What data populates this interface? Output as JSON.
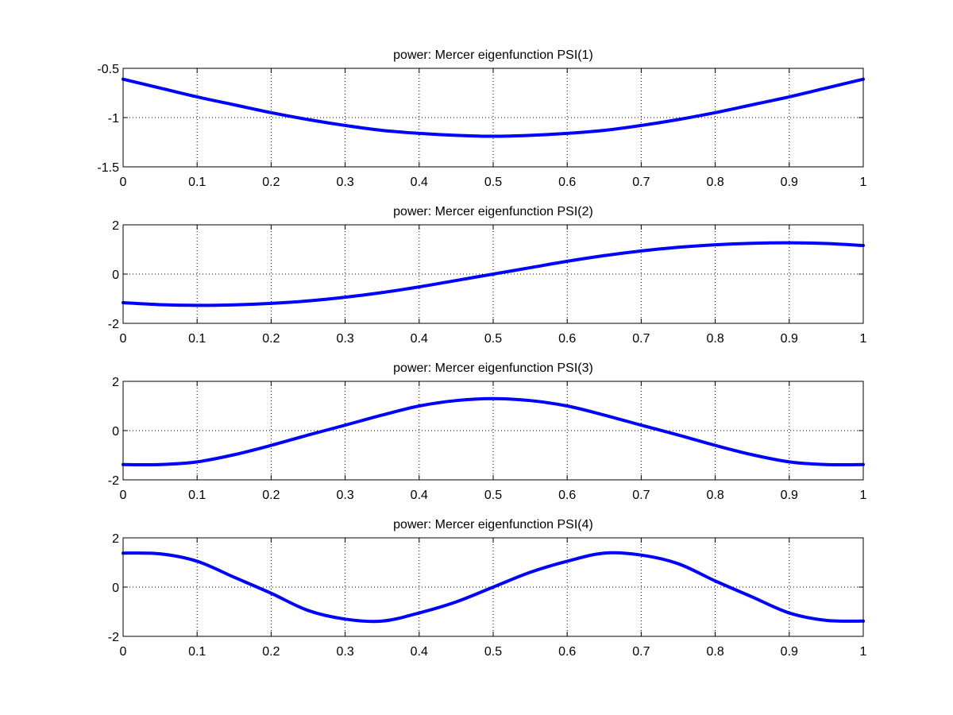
{
  "figure": {
    "background": "#ffffff",
    "line_color": "#0000ff",
    "axis_color": "#000000",
    "grid_color": "#000000",
    "grid": true
  },
  "chart_data": [
    {
      "type": "line",
      "title": "power: Mercer eigenfunction PSI(1)",
      "xlabel": "",
      "ylabel": "",
      "xlim": [
        0,
        1
      ],
      "ylim": [
        -1.5,
        -0.5
      ],
      "xticks": [
        "0",
        "0.1",
        "0.2",
        "0.3",
        "0.4",
        "0.5",
        "0.6",
        "0.7",
        "0.8",
        "0.9",
        "1"
      ],
      "yticks": [
        {
          "value": -0.5,
          "label": "-0.5"
        },
        {
          "value": -1,
          "label": "-1"
        },
        {
          "value": -1.5,
          "label": "-1.5"
        }
      ],
      "series": [
        {
          "color": "#0000ff",
          "x": [
            0,
            0.05,
            0.1,
            0.15,
            0.2,
            0.25,
            0.3,
            0.35,
            0.4,
            0.45,
            0.5,
            0.55,
            0.6,
            0.65,
            0.7,
            0.75,
            0.8,
            0.85,
            0.9,
            0.95,
            1
          ],
          "y": [
            -0.61,
            -0.7,
            -0.79,
            -0.87,
            -0.95,
            -1.02,
            -1.08,
            -1.13,
            -1.16,
            -1.18,
            -1.19,
            -1.18,
            -1.16,
            -1.13,
            -1.08,
            -1.02,
            -0.95,
            -0.87,
            -0.79,
            -0.7,
            -0.61
          ]
        }
      ]
    },
    {
      "type": "line",
      "title": "power: Mercer eigenfunction PSI(2)",
      "xlabel": "",
      "ylabel": "",
      "xlim": [
        0,
        1
      ],
      "ylim": [
        -2,
        2
      ],
      "xticks": [
        "0",
        "0.1",
        "0.2",
        "0.3",
        "0.4",
        "0.5",
        "0.6",
        "0.7",
        "0.8",
        "0.9",
        "1"
      ],
      "yticks": [
        {
          "value": 2,
          "label": "2"
        },
        {
          "value": 0,
          "label": "0"
        },
        {
          "value": -2,
          "label": "-2"
        }
      ],
      "series": [
        {
          "color": "#0000ff",
          "x": [
            0,
            0.05,
            0.1,
            0.15,
            0.2,
            0.25,
            0.3,
            0.35,
            0.4,
            0.45,
            0.5,
            0.55,
            0.6,
            0.65,
            0.7,
            0.75,
            0.8,
            0.85,
            0.9,
            0.95,
            1
          ],
          "y": [
            -1.16,
            -1.24,
            -1.27,
            -1.25,
            -1.19,
            -1.09,
            -0.94,
            -0.75,
            -0.52,
            -0.26,
            0.0,
            0.26,
            0.52,
            0.75,
            0.94,
            1.09,
            1.19,
            1.25,
            1.27,
            1.24,
            1.16
          ]
        }
      ]
    },
    {
      "type": "line",
      "title": "power: Mercer eigenfunction PSI(3)",
      "xlabel": "",
      "ylabel": "",
      "xlim": [
        0,
        1
      ],
      "ylim": [
        -2,
        2
      ],
      "xticks": [
        "0",
        "0.1",
        "0.2",
        "0.3",
        "0.4",
        "0.5",
        "0.6",
        "0.7",
        "0.8",
        "0.9",
        "1"
      ],
      "yticks": [
        {
          "value": 2,
          "label": "2"
        },
        {
          "value": 0,
          "label": "0"
        },
        {
          "value": -2,
          "label": "-2"
        }
      ],
      "series": [
        {
          "color": "#0000ff",
          "x": [
            0,
            0.05,
            0.1,
            0.15,
            0.2,
            0.25,
            0.3,
            0.35,
            0.4,
            0.45,
            0.5,
            0.55,
            0.6,
            0.65,
            0.7,
            0.75,
            0.8,
            0.85,
            0.9,
            0.95,
            1
          ],
          "y": [
            -1.38,
            -1.38,
            -1.27,
            -0.98,
            -0.6,
            -0.18,
            0.22,
            0.63,
            1.0,
            1.22,
            1.3,
            1.22,
            1.0,
            0.63,
            0.22,
            -0.18,
            -0.6,
            -0.98,
            -1.27,
            -1.38,
            -1.38
          ]
        }
      ]
    },
    {
      "type": "line",
      "title": "power: Mercer eigenfunction PSI(4)",
      "xlabel": "",
      "ylabel": "",
      "xlim": [
        0,
        1
      ],
      "ylim": [
        -2,
        2
      ],
      "xticks": [
        "0",
        "0.1",
        "0.2",
        "0.3",
        "0.4",
        "0.5",
        "0.6",
        "0.7",
        "0.8",
        "0.9",
        "1"
      ],
      "yticks": [
        {
          "value": 2,
          "label": "2"
        },
        {
          "value": 0,
          "label": "0"
        },
        {
          "value": -2,
          "label": "-2"
        }
      ],
      "series": [
        {
          "color": "#0000ff",
          "x": [
            0,
            0.05,
            0.1,
            0.15,
            0.2,
            0.25,
            0.3,
            0.35,
            0.4,
            0.45,
            0.5,
            0.55,
            0.6,
            0.65,
            0.7,
            0.75,
            0.8,
            0.85,
            0.9,
            0.95,
            1
          ],
          "y": [
            1.38,
            1.35,
            1.05,
            0.4,
            -0.25,
            -0.95,
            -1.3,
            -1.38,
            -1.05,
            -0.6,
            0.0,
            0.6,
            1.05,
            1.38,
            1.3,
            0.95,
            0.25,
            -0.4,
            -1.05,
            -1.35,
            -1.38
          ]
        }
      ]
    }
  ]
}
